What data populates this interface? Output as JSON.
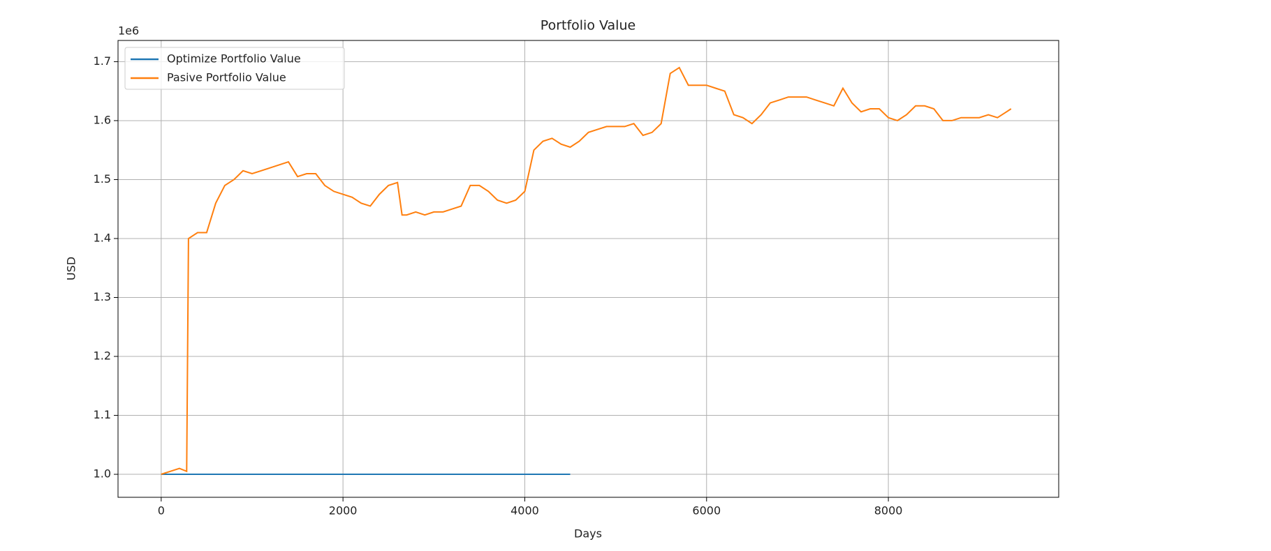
{
  "chart_data": {
    "type": "line",
    "title": "Portfolio Value",
    "x_label": "Days",
    "y_label": "USD",
    "y_offset_label": "1e6",
    "x": [
      0,
      100,
      200,
      280,
      300,
      400,
      500,
      600,
      700,
      800,
      900,
      1000,
      1100,
      1200,
      1300,
      1400,
      1500,
      1600,
      1700,
      1800,
      1900,
      2000,
      2100,
      2200,
      2300,
      2400,
      2500,
      2600,
      2650,
      2700,
      2800,
      2900,
      3000,
      3100,
      3200,
      3300,
      3400,
      3500,
      3600,
      3700,
      3800,
      3900,
      4000,
      4100,
      4200,
      4300,
      4400,
      4500,
      4600,
      4700,
      4800,
      4900,
      5000,
      5100,
      5200,
      5300,
      5400,
      5500,
      5600,
      5700,
      5800,
      5900,
      6000,
      6100,
      6200,
      6300,
      6400,
      6500,
      6600,
      6700,
      6800,
      6900,
      7000,
      7100,
      7200,
      7300,
      7400,
      7500,
      7600,
      7700,
      7800,
      7900,
      8000,
      8100,
      8200,
      8300,
      8400,
      8500,
      8600,
      8700,
      8800,
      8900,
      9000,
      9100,
      9200,
      9300,
      9350
    ],
    "series": [
      {
        "name": "Optimize Portfolio Value",
        "color": "#1f77b4",
        "values": [
          1000000,
          1000000,
          1000000,
          1000000,
          1000000,
          1000000,
          1000000,
          1000000,
          1000000,
          1000000,
          1000000,
          1000000,
          1000000,
          1000000,
          1000000,
          1000000,
          1000000,
          1000000,
          1000000,
          1000000,
          1000000,
          1000000,
          1000000,
          1000000,
          1000000,
          1000000,
          1000000,
          1000000,
          1000000,
          1000000,
          1000000,
          1000000,
          1000000,
          1000000,
          1000000,
          1000000,
          1000000,
          1000000,
          1000000,
          1000000,
          1000000,
          1000000,
          1000000,
          1000000,
          1000000,
          1000000,
          1000000,
          1000000,
          null,
          null,
          null,
          null,
          null,
          null,
          null,
          null,
          null,
          null,
          null,
          null,
          null,
          null,
          null,
          null,
          null,
          null,
          null,
          null,
          null,
          null,
          null,
          null,
          null,
          null,
          null,
          null,
          null,
          null,
          null,
          null,
          null,
          null,
          null,
          null,
          null,
          null,
          null,
          null,
          null,
          null,
          null,
          null,
          null,
          null,
          null,
          null,
          null
        ]
      },
      {
        "name": "Pasive Portfolio Value",
        "color": "#ff7f0e",
        "values": [
          1000000,
          1005000,
          1010000,
          1005000,
          1400000,
          1410000,
          1410000,
          1460000,
          1490000,
          1500000,
          1515000,
          1510000,
          1515000,
          1520000,
          1525000,
          1530000,
          1505000,
          1510000,
          1510000,
          1490000,
          1480000,
          1475000,
          1470000,
          1460000,
          1455000,
          1475000,
          1490000,
          1495000,
          1440000,
          1440000,
          1445000,
          1440000,
          1445000,
          1445000,
          1450000,
          1455000,
          1490000,
          1490000,
          1480000,
          1465000,
          1460000,
          1465000,
          1480000,
          1550000,
          1565000,
          1570000,
          1560000,
          1555000,
          1565000,
          1580000,
          1585000,
          1590000,
          1590000,
          1590000,
          1595000,
          1575000,
          1580000,
          1595000,
          1680000,
          1690000,
          1660000,
          1660000,
          1660000,
          1655000,
          1650000,
          1610000,
          1605000,
          1595000,
          1610000,
          1630000,
          1635000,
          1640000,
          1640000,
          1640000,
          1635000,
          1630000,
          1625000,
          1655000,
          1630000,
          1615000,
          1620000,
          1620000,
          1605000,
          1600000,
          1610000,
          1625000,
          1625000,
          1620000,
          1600000,
          1600000,
          1605000,
          1605000,
          1605000,
          1610000,
          1605000,
          1615000,
          1620000
        ]
      }
    ],
    "xlim": [
      -475,
      9874
    ],
    "xticks": [
      0,
      2000,
      4000,
      6000,
      8000
    ],
    "ylim": [
      961000,
      1736000
    ],
    "yticks": [
      {
        "value": 1000000,
        "label": "1.0"
      },
      {
        "value": 1100000,
        "label": "1.1"
      },
      {
        "value": 1200000,
        "label": "1.2"
      },
      {
        "value": 1300000,
        "label": "1.3"
      },
      {
        "value": 1400000,
        "label": "1.4"
      },
      {
        "value": 1500000,
        "label": "1.5"
      },
      {
        "value": 1600000,
        "label": "1.6"
      },
      {
        "value": 1700000,
        "label": "1.7"
      }
    ],
    "grid": true,
    "legend": "upper-left"
  }
}
